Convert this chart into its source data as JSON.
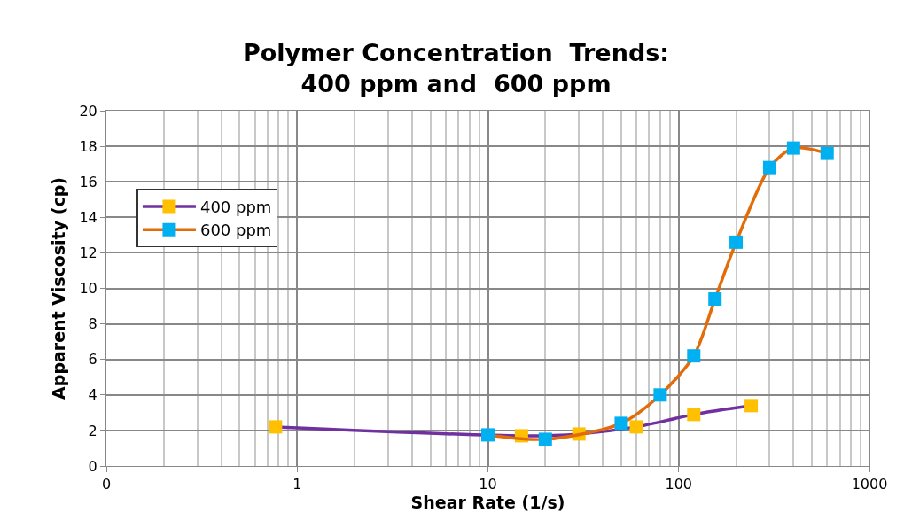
{
  "chart_data": {
    "type": "line",
    "title": "Polymer Concentration  Trends:\n400 ppm and  600 ppm",
    "xlabel": "Shear Rate (1/s)",
    "ylabel": "Apparent Viscosity (cp)",
    "log": "x",
    "grid": true,
    "legend": "left",
    "marker": "square",
    "line_style": "solid",
    "xlim": [
      0.1,
      1000
    ],
    "xticks": [
      {
        "value": 0.1,
        "label": "0"
      },
      1,
      10,
      100,
      1000
    ],
    "ylim": [
      0,
      20
    ],
    "yticks": [
      0,
      2,
      4,
      6,
      8,
      10,
      12,
      14,
      16,
      18,
      20
    ],
    "series": [
      {
        "name": "400 ppm",
        "color": "#7030a0",
        "colors": [
          "#ffc000",
          "#ffc000",
          "#ffc000",
          "#ffc000",
          "#ffc000",
          "#ffc000"
        ],
        "x": [
          0.77,
          15,
          30,
          60,
          120,
          240
        ],
        "values": [
          2.2,
          1.7,
          1.8,
          2.2,
          2.9,
          3.4
        ]
      },
      {
        "name": "600 ppm",
        "color": "#e36c0a",
        "colors": [
          "#00b0f0",
          "#00b0f0",
          "#00b0f0",
          "#00b0f0",
          "#00b0f0",
          "#00b0f0",
          "#00b0f0",
          "#00b0f0",
          "#00b0f0",
          "#00b0f0"
        ],
        "x": [
          10,
          20,
          50,
          80,
          120,
          155,
          200,
          300,
          400,
          600
        ],
        "values": [
          1.75,
          1.5,
          2.4,
          4.0,
          6.2,
          9.4,
          12.6,
          16.8,
          17.9,
          17.6
        ]
      }
    ]
  }
}
